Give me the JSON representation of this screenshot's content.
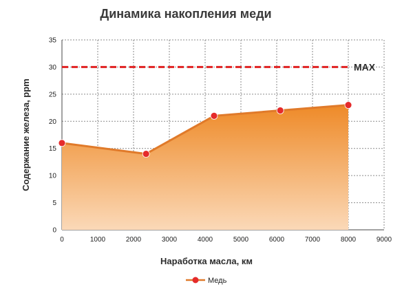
{
  "chart_data": {
    "type": "area",
    "title": "Динамика накопления меди",
    "xlabel": "Наработка масла, км",
    "ylabel": "Содержание железа, ppm",
    "xlim": [
      0,
      9000
    ],
    "ylim": [
      0,
      35
    ],
    "xticks": [
      "0",
      "1000",
      "2000",
      "3000",
      "4000",
      "5000",
      "6000",
      "7000",
      "8000",
      "9000"
    ],
    "yticks": [
      "0",
      "5",
      "10",
      "15",
      "20",
      "25",
      "30",
      "35"
    ],
    "grid": true,
    "legend_position": "bottom",
    "series": [
      {
        "name": "Медь",
        "x": [
          0,
          2350,
          4250,
          6100,
          8000
        ],
        "y": [
          16,
          14,
          21,
          22,
          23
        ],
        "line_color": "#e07a2a",
        "marker_color": "#e52b2b",
        "fill_top": "#ee8a28",
        "fill_bottom": "#fbd9b8"
      }
    ],
    "reference_line": {
      "label": "MAX",
      "y": 30,
      "color": "#e02020"
    }
  }
}
